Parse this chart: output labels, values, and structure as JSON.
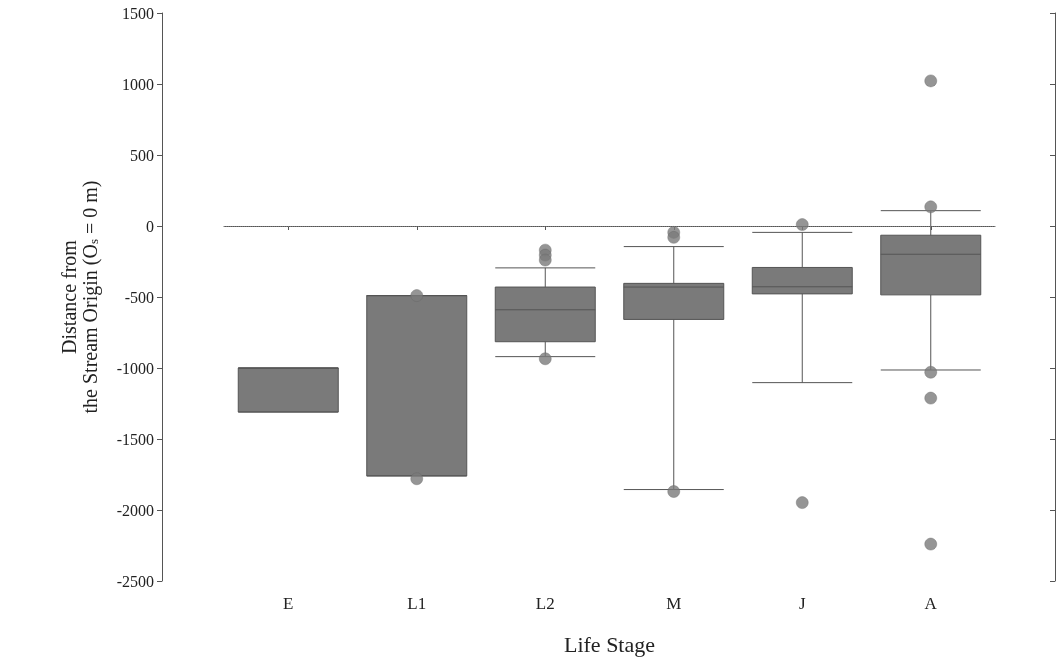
{
  "chart_data": {
    "type": "box",
    "xlabel": "Life Stage",
    "ylabel": "Distance from\nthe Stream Origin (O$_{s}$ = 0 m)",
    "categories": [
      "E",
      "L1",
      "L2",
      "M",
      "J",
      "A"
    ],
    "series": [
      {
        "color": "#7a7a7a",
        "boxes": [
          {
            "low": -1310,
            "q1": -1310,
            "median": -1000,
            "q3": -1000,
            "high": -1000
          },
          {
            "low": -1760,
            "q1": -1760,
            "median": -490,
            "q3": -490,
            "high": -490,
            "outliers": [
              -490,
              -1780
            ]
          },
          {
            "low": -920,
            "q1": -815,
            "median": -590,
            "q3": -430,
            "high": -295,
            "outliers": [
              -170,
              -205,
              -240,
              -935
            ]
          },
          {
            "low": -1856,
            "q1": -658,
            "median": -430,
            "q3": -404,
            "high": -145,
            "outliers": [
              -45,
              -80,
              -1870
            ]
          },
          {
            "low": -1103,
            "q1": -478,
            "median": -428,
            "q3": -292,
            "high": -45,
            "outliers": [
              10,
              -1948
            ]
          },
          {
            "low": -1014,
            "q1": -485,
            "median": -199,
            "q3": -65,
            "high": 108,
            "outliers": [
              1022,
              135,
              -1030,
              -1212,
              -2240
            ]
          }
        ]
      }
    ],
    "ylim": [
      -2500,
      1500
    ],
    "yticks": [
      -2500,
      -2000,
      -1500,
      -1000,
      -500,
      0,
      500,
      1000,
      1500
    ],
    "grid": false,
    "ref_lines": [
      {
        "axis": "y",
        "value": 0,
        "line_style": "dotted",
        "color": "#777777"
      }
    ]
  }
}
